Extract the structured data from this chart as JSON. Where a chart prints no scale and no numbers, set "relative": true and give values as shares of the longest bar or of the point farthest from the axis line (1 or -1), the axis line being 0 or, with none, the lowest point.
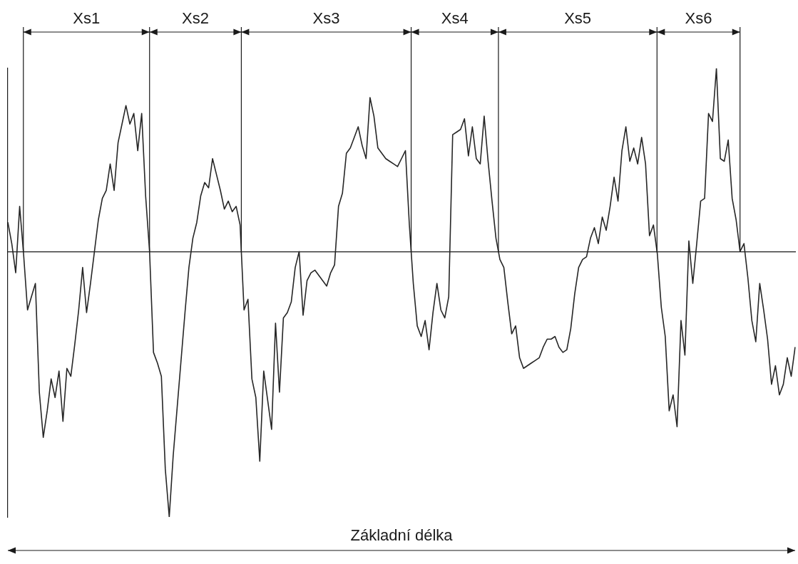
{
  "chart_data": {
    "type": "line",
    "relative": true,
    "marker": "none",
    "line_style": "solid",
    "categories": [
      null,
      null,
      null,
      null,
      null,
      null,
      null,
      null,
      null,
      null,
      null,
      null,
      null,
      null,
      null,
      null,
      null,
      null,
      null,
      null,
      null,
      null,
      null,
      null,
      null,
      null,
      null,
      null,
      null,
      null,
      null,
      null,
      null,
      null,
      null,
      null,
      null,
      null,
      null,
      null,
      null,
      null,
      null,
      null,
      null,
      null,
      null,
      null,
      null,
      null,
      null,
      null,
      null,
      null,
      null,
      null,
      null,
      null,
      null,
      null,
      null,
      null,
      null,
      null,
      null,
      null,
      null,
      null,
      null,
      null,
      null,
      null,
      null,
      null,
      null,
      null,
      null,
      null,
      null,
      null,
      null,
      null,
      null,
      null,
      null,
      null,
      null,
      null,
      null,
      null,
      null,
      null,
      null,
      null,
      null,
      null,
      null,
      null,
      null,
      null,
      null,
      null,
      null,
      null,
      null,
      null,
      null,
      null,
      null,
      null,
      null,
      null,
      null,
      null,
      null,
      null,
      null,
      null,
      null,
      null,
      null,
      null,
      null,
      null,
      null,
      null,
      null,
      null,
      null,
      null,
      null,
      null,
      null,
      null,
      null,
      null,
      null,
      null,
      null,
      null,
      null,
      null,
      null,
      null,
      null,
      null,
      null,
      null,
      null,
      null,
      null,
      null,
      null,
      null,
      null,
      null,
      null,
      null,
      null,
      null,
      null,
      null,
      null,
      null,
      null,
      null,
      null,
      null,
      null,
      null,
      null,
      null,
      null,
      null,
      null,
      null,
      null,
      null,
      null,
      null,
      null,
      null,
      null,
      null,
      null,
      null,
      null,
      null,
      null,
      null,
      null,
      null,
      null,
      null,
      null,
      null,
      null,
      null,
      null,
      null,
      null
    ],
    "series": [
      {
        "color": "#262626",
        "values": [
          0.11,
          0.03,
          -0.08,
          0.17,
          -0.01,
          -0.22,
          -0.17,
          -0.12,
          -0.53,
          -0.7,
          -0.6,
          -0.48,
          -0.55,
          -0.45,
          -0.64,
          -0.44,
          -0.47,
          -0.35,
          -0.22,
          -0.06,
          -0.23,
          -0.12,
          0,
          0.12,
          0.2,
          0.23,
          0.33,
          0.23,
          0.41,
          0.48,
          0.55,
          0.48,
          0.52,
          0.38,
          0.52,
          0.21,
          0,
          -0.38,
          -0.42,
          -0.47,
          -0.82,
          -1,
          -0.77,
          -0.59,
          -0.41,
          -0.23,
          -0.06,
          0.05,
          0.11,
          0.21,
          0.26,
          0.24,
          0.35,
          0.29,
          0.23,
          0.16,
          0.19,
          0.15,
          0.17,
          0.1,
          -0.22,
          -0.18,
          -0.48,
          -0.55,
          -0.79,
          -0.45,
          -0.56,
          -0.67,
          -0.27,
          -0.53,
          -0.25,
          -0.23,
          -0.19,
          -0.06,
          0,
          -0.24,
          -0.11,
          -0.08,
          -0.07,
          -0.09,
          -0.11,
          -0.13,
          -0.08,
          -0.05,
          0.17,
          0.22,
          0.37,
          0.39,
          0.43,
          0.47,
          0.4,
          0.35,
          0.58,
          0.51,
          0.39,
          0.37,
          0.35,
          0.34,
          0.33,
          0.32,
          0.35,
          0.38,
          0.1,
          -0.12,
          -0.28,
          -0.32,
          -0.26,
          -0.37,
          -0.23,
          -0.12,
          -0.22,
          -0.25,
          -0.17,
          0.44,
          0.45,
          0.46,
          0.5,
          0.36,
          0.47,
          0.35,
          0.33,
          0.51,
          0.34,
          0.19,
          0.05,
          -0.03,
          -0.06,
          -0.19,
          -0.31,
          -0.28,
          -0.4,
          -0.44,
          -0.43,
          -0.42,
          -0.41,
          -0.4,
          -0.36,
          -0.33,
          -0.33,
          -0.32,
          -0.36,
          -0.38,
          -0.37,
          -0.29,
          -0.16,
          -0.06,
          -0.03,
          -0.02,
          0.05,
          0.09,
          0.03,
          0.13,
          0.08,
          0.17,
          0.28,
          0.19,
          0.38,
          0.47,
          0.34,
          0.39,
          0.33,
          0.43,
          0.33,
          0.06,
          0.1,
          -0.01,
          -0.21,
          -0.32,
          -0.6,
          -0.54,
          -0.66,
          -0.26,
          -0.39,
          0.04,
          -0.12,
          0.03,
          0.19,
          0.2,
          0.52,
          0.49,
          0.69,
          0.35,
          0.34,
          0.42,
          0.2,
          0.12,
          0,
          0.03,
          -0.1,
          -0.26,
          -0.34,
          -0.12,
          -0.22,
          -0.33,
          -0.5,
          -0.43,
          -0.54,
          -0.5,
          -0.4,
          -0.47,
          -0.36
        ]
      }
    ],
    "annotations": [
      "Xs1",
      "Xs2",
      "Xs3",
      "Xs4",
      "Xs5",
      "Xs6",
      "Základní délka"
    ]
  }
}
